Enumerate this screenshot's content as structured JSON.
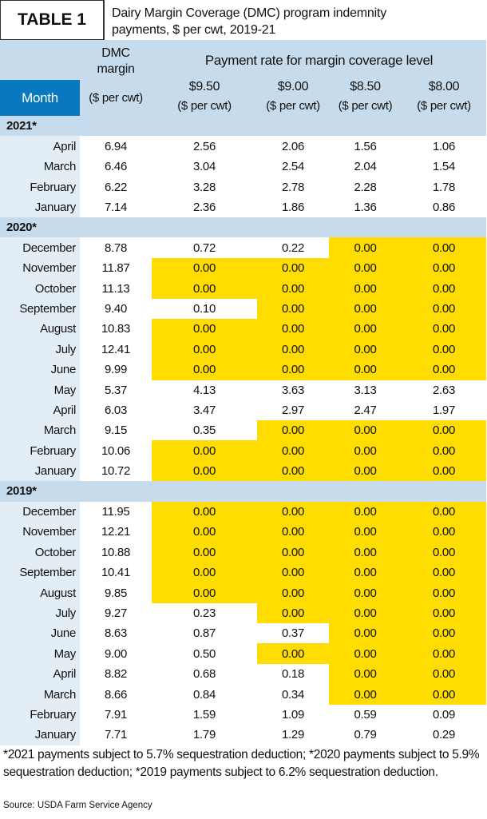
{
  "header": {
    "label": "TABLE 1",
    "title_lines": [
      "Dairy Margin Coverage (DMC) program indemnity",
      "payments, $ per cwt, 2019-21"
    ]
  },
  "table": {
    "columns": {
      "month": "Month",
      "dmc_lines": [
        "DMC",
        "margin"
      ],
      "dmc_unit": "($ per cwt)",
      "payment_group": "Payment rate for margin coverage level",
      "levels": [
        {
          "label": "$9.50",
          "unit": "($ per cwt)"
        },
        {
          "label": "$9.00",
          "unit": "($ per cwt)"
        },
        {
          "label": "$8.50",
          "unit": "($ per cwt)"
        },
        {
          "label": "$8.00",
          "unit": "($ per cwt)"
        }
      ]
    },
    "sections": [
      {
        "label": "2021*",
        "rows": [
          [
            "April",
            "6.94",
            "2.56",
            "2.06",
            "1.56",
            "1.06"
          ],
          [
            "March",
            "6.46",
            "3.04",
            "2.54",
            "2.04",
            "1.54"
          ],
          [
            "February",
            "6.22",
            "3.28",
            "2.78",
            "2.28",
            "1.78"
          ],
          [
            "January",
            "7.14",
            "2.36",
            "1.86",
            "1.36",
            "0.86"
          ]
        ]
      },
      {
        "label": "2020*",
        "rows": [
          [
            "December",
            "8.78",
            "0.72",
            "0.22",
            "0.00",
            "0.00"
          ],
          [
            "November",
            "11.87",
            "0.00",
            "0.00",
            "0.00",
            "0.00"
          ],
          [
            "October",
            "11.13",
            "0.00",
            "0.00",
            "0.00",
            "0.00"
          ],
          [
            "September",
            "9.40",
            "0.10",
            "0.00",
            "0.00",
            "0.00"
          ],
          [
            "August",
            "10.83",
            "0.00",
            "0.00",
            "0.00",
            "0.00"
          ],
          [
            "July",
            "12.41",
            "0.00",
            "0.00",
            "0.00",
            "0.00"
          ],
          [
            "June",
            "9.99",
            "0.00",
            "0.00",
            "0.00",
            "0.00"
          ],
          [
            "May",
            "5.37",
            "4.13",
            "3.63",
            "3.13",
            "2.63"
          ],
          [
            "April",
            "6.03",
            "3.47",
            "2.97",
            "2.47",
            "1.97"
          ],
          [
            "March",
            "9.15",
            "0.35",
            "0.00",
            "0.00",
            "0.00"
          ],
          [
            "February",
            "10.06",
            "0.00",
            "0.00",
            "0.00",
            "0.00"
          ],
          [
            "January",
            "10.72",
            "0.00",
            "0.00",
            "0.00",
            "0.00"
          ]
        ]
      },
      {
        "label": "2019*",
        "rows": [
          [
            "December",
            "11.95",
            "0.00",
            "0.00",
            "0.00",
            "0.00"
          ],
          [
            "November",
            "12.21",
            "0.00",
            "0.00",
            "0.00",
            "0.00"
          ],
          [
            "October",
            "10.88",
            "0.00",
            "0.00",
            "0.00",
            "0.00"
          ],
          [
            "September",
            "10.41",
            "0.00",
            "0.00",
            "0.00",
            "0.00"
          ],
          [
            "August",
            "9.85",
            "0.00",
            "0.00",
            "0.00",
            "0.00"
          ],
          [
            "July",
            "9.27",
            "0.23",
            "0.00",
            "0.00",
            "0.00"
          ],
          [
            "June",
            "8.63",
            "0.87",
            "0.37",
            "0.00",
            "0.00"
          ],
          [
            "May",
            "9.00",
            "0.50",
            "0.00",
            "0.00",
            "0.00"
          ],
          [
            "April",
            "8.82",
            "0.68",
            "0.18",
            "0.00",
            "0.00"
          ],
          [
            "March",
            "8.66",
            "0.84",
            "0.34",
            "0.00",
            "0.00"
          ],
          [
            "February",
            "7.91",
            "1.59",
            "1.09",
            "0.59",
            "0.09"
          ],
          [
            "January",
            "7.71",
            "1.79",
            "1.29",
            "0.79",
            "0.29"
          ]
        ]
      }
    ],
    "zero_highlight_color": "#ffdd00"
  },
  "footnote": "*2021 payments subject to 5.7% sequestration deduction; *2020 payments subject to 5.9% sequestration deduction; *2019 payments subject to 6.2% sequestration deduction.",
  "source": "Source: USDA Farm Service Agency"
}
